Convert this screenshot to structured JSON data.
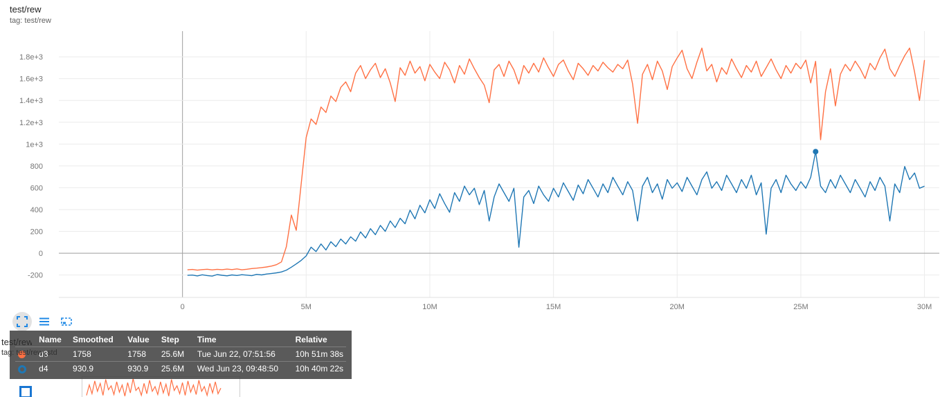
{
  "colors": {
    "orange": "#ff7043",
    "blue": "#1f77b4",
    "icon_blue": "#1e88e5",
    "tooltip_bg": "#424242"
  },
  "card": {
    "title": "test/rew",
    "tag": "tag: test/rew"
  },
  "toolbar": {
    "icons": [
      {
        "name": "fullscreen"
      },
      {
        "name": "data-table"
      },
      {
        "name": "fit-domain"
      }
    ]
  },
  "chart_data": {
    "type": "line",
    "title": "test/rew",
    "xlabel": "step",
    "ylabel": "",
    "xlim": [
      -5,
      30.6
    ],
    "ylim": [
      -405,
      2035
    ],
    "grid": true,
    "x_ticks": [
      {
        "v": 0,
        "label": "0"
      },
      {
        "v": 5,
        "label": "5M"
      },
      {
        "v": 10,
        "label": "10M"
      },
      {
        "v": 15,
        "label": "15M"
      },
      {
        "v": 20,
        "label": "20M"
      },
      {
        "v": 25,
        "label": "25M"
      },
      {
        "v": 30,
        "label": "30M"
      }
    ],
    "y_ticks": [
      {
        "v": -200,
        "label": "-200"
      },
      {
        "v": 0,
        "label": "0"
      },
      {
        "v": 200,
        "label": "200"
      },
      {
        "v": 400,
        "label": "400"
      },
      {
        "v": 600,
        "label": "600"
      },
      {
        "v": 800,
        "label": "800"
      },
      {
        "v": 1000,
        "label": "1e+3"
      },
      {
        "v": 1200,
        "label": "1.2e+3"
      },
      {
        "v": 1400,
        "label": "1.4e+3"
      },
      {
        "v": 1600,
        "label": "1.6e+3"
      },
      {
        "v": 1800,
        "label": "1.8e+3"
      }
    ],
    "series": [
      {
        "name": "d3",
        "color": "#ff7043",
        "x_start": 0.2,
        "x_step": 0.2,
        "x_unit": "M",
        "values": [
          -152,
          -149,
          -155,
          -150,
          -147,
          -153,
          -148,
          -151,
          -146,
          -150,
          -144,
          -152,
          -147,
          -141,
          -137,
          -132,
          -126,
          -118,
          -105,
          -80,
          60,
          350,
          210,
          640,
          1060,
          1230,
          1180,
          1340,
          1290,
          1440,
          1390,
          1520,
          1570,
          1480,
          1650,
          1720,
          1600,
          1680,
          1740,
          1610,
          1690,
          1560,
          1390,
          1700,
          1630,
          1760,
          1650,
          1710,
          1580,
          1730,
          1660,
          1600,
          1750,
          1680,
          1560,
          1720,
          1640,
          1780,
          1690,
          1610,
          1540,
          1380,
          1680,
          1730,
          1620,
          1760,
          1680,
          1550,
          1720,
          1650,
          1740,
          1660,
          1790,
          1700,
          1620,
          1730,
          1770,
          1670,
          1590,
          1740,
          1690,
          1630,
          1720,
          1670,
          1750,
          1700,
          1660,
          1730,
          1690,
          1770,
          1550,
          1190,
          1640,
          1730,
          1590,
          1760,
          1670,
          1500,
          1710,
          1790,
          1860,
          1690,
          1600,
          1750,
          1880,
          1670,
          1730,
          1570,
          1700,
          1640,
          1780,
          1690,
          1610,
          1720,
          1660,
          1760,
          1620,
          1700,
          1780,
          1680,
          1600,
          1720,
          1650,
          1740,
          1690,
          1770,
          1560,
          1758,
          1040,
          1480,
          1690,
          1350,
          1640,
          1730,
          1670,
          1760,
          1690,
          1600,
          1740,
          1680,
          1790,
          1870,
          1690,
          1620,
          1720,
          1810,
          1880,
          1660,
          1400,
          1770
        ]
      },
      {
        "name": "d4",
        "color": "#1f77b4",
        "x_start": 0.2,
        "x_step": 0.2,
        "x_unit": "M",
        "values": [
          -203,
          -200,
          -208,
          -198,
          -205,
          -210,
          -196,
          -202,
          -207,
          -199,
          -204,
          -197,
          -201,
          -206,
          -194,
          -199,
          -191,
          -186,
          -180,
          -172,
          -155,
          -128,
          -98,
          -65,
          -25,
          55,
          15,
          85,
          30,
          105,
          60,
          130,
          85,
          150,
          110,
          195,
          140,
          225,
          170,
          255,
          200,
          295,
          235,
          320,
          270,
          395,
          315,
          440,
          370,
          490,
          410,
          545,
          455,
          375,
          555,
          475,
          615,
          535,
          595,
          445,
          575,
          295,
          515,
          635,
          555,
          475,
          595,
          55,
          515,
          575,
          455,
          615,
          535,
          475,
          595,
          515,
          645,
          565,
          485,
          625,
          545,
          675,
          595,
          515,
          635,
          555,
          695,
          615,
          535,
          655,
          575,
          295,
          615,
          695,
          555,
          635,
          495,
          675,
          595,
          645,
          565,
          695,
          615,
          535,
          675,
          745,
          595,
          655,
          575,
          715,
          635,
          555,
          675,
          595,
          715,
          535,
          645,
          175,
          595,
          675,
          555,
          715,
          635,
          575,
          655,
          595,
          695,
          930.9,
          615,
          555,
          675,
          595,
          715,
          635,
          555,
          675,
          595,
          515,
          655,
          575,
          695,
          615,
          295,
          635,
          555,
          795,
          675,
          735,
          595,
          615
        ]
      }
    ],
    "marker": {
      "series": "d4",
      "color": "#1f77b4",
      "x": 25.6,
      "y": 930.9
    }
  },
  "tooltip": {
    "headers": [
      "Name",
      "Smoothed",
      "Value",
      "Step",
      "Time",
      "Relative"
    ],
    "rows": [
      {
        "name": "d3",
        "swatch": "#ff7043",
        "smoothed": "1758",
        "value": "1758",
        "step": "25.6M",
        "time": "Tue Jun 22, 07:51:56",
        "relative": "10h 51m 38s"
      },
      {
        "name": "d4",
        "swatch": "#1f77b4",
        "smoothed": "930.9",
        "value": "930.9",
        "step": "25.6M",
        "time": "Wed Jun 23, 09:48:50",
        "relative": "10h 40m 22s"
      }
    ]
  },
  "next_card": {
    "title": "test/rew_std",
    "tag": "tag: test/rew_std",
    "chart_data": {
      "type": "line",
      "title": "test/rew_std",
      "series": [
        {
          "name": "rew_std",
          "color": "#ff7043",
          "values": [
            0.3,
            1.6,
            0.5,
            2.1,
            0.8,
            1.8,
            0.3,
            2.3,
            1.0,
            1.5,
            0.4,
            2.0,
            0.7,
            1.6,
            0.2,
            1.9,
            0.6,
            2.4,
            0.9,
            1.3,
            0.3,
            1.8,
            0.5,
            2.2,
            0.8,
            1.4,
            0.4,
            2.0,
            0.6,
            1.7,
            0.2,
            2.3,
            0.9,
            1.5,
            0.5,
            1.9,
            0.3,
            2.1,
            0.7,
            1.6,
            0.4,
            2.2,
            0.8,
            1.4,
            0.3,
            1.8,
            0.6,
            2.0,
            0.5,
            1.2
          ]
        }
      ]
    }
  }
}
